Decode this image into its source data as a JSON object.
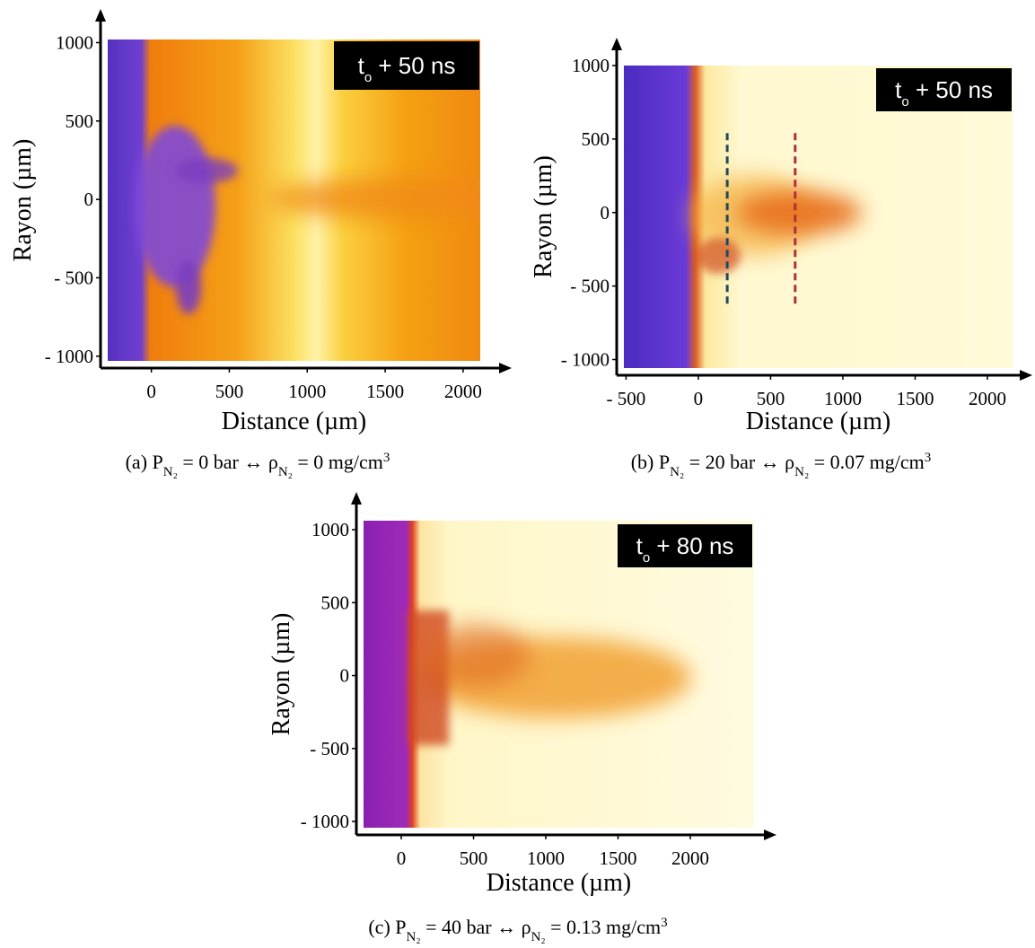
{
  "chart_data": [
    {
      "type": "image",
      "xlabel": "Distance (µm)",
      "ylabel": "Rayon (µm)",
      "annotation": [
        {
          "text": "t"
        },
        {
          "text": "o",
          "shift": "sub"
        },
        {
          "text": " + 50 ns"
        }
      ],
      "xlim": [
        -280,
        2110
      ],
      "ylim": [
        -1030,
        1020
      ],
      "xticks": [
        0,
        500,
        1000,
        1500,
        2000
      ],
      "yticks": [
        1000,
        500,
        0,
        {
          "value": -500,
          "label": "- 500"
        },
        {
          "value": -1000,
          "label": "- 1000"
        }
      ],
      "caption": [
        {
          "text": "(a) P"
        },
        {
          "text": "N₂",
          "shift": "sub"
        },
        {
          "text": " = 0 bar ↔ ρ"
        },
        {
          "text": "N₂",
          "shift": "sub"
        },
        {
          "text": " = 0 mg/cm"
        },
        {
          "text": "3",
          "shift": "super"
        }
      ]
    },
    {
      "type": "image",
      "xlabel": "Distance (µm)",
      "ylabel": "Rayon (µm)",
      "annotation": [
        {
          "text": "t"
        },
        {
          "text": "o",
          "shift": "sub"
        },
        {
          "text": " + 50 ns"
        }
      ],
      "xlim": [
        -515,
        2174
      ],
      "ylim": [
        -1058,
        1000
      ],
      "xticks": [
        {
          "value": -500,
          "label": "- 500"
        },
        0,
        500,
        1000,
        1500,
        2000
      ],
      "yticks": [
        1000,
        500,
        0,
        {
          "value": -500,
          "label": "- 500"
        },
        {
          "value": -1000,
          "label": "- 1000"
        }
      ],
      "markers": [
        {
          "x": 200,
          "y": [
            -620,
            560
          ],
          "color": "#1f4a5c"
        },
        {
          "x": 670,
          "y": [
            -620,
            560
          ],
          "color": "#b0303a"
        }
      ],
      "caption": [
        {
          "text": "(b) P"
        },
        {
          "text": "N₂",
          "shift": "sub"
        },
        {
          "text": " = 20 bar ↔ ρ"
        },
        {
          "text": "N₂",
          "shift": "sub"
        },
        {
          "text": " = 0.07 mg/cm"
        },
        {
          "text": "3",
          "shift": "super"
        }
      ]
    },
    {
      "type": "image",
      "xlabel": "Distance (µm)",
      "ylabel": "Rayon (µm)",
      "annotation": [
        {
          "text": "t"
        },
        {
          "text": "o",
          "shift": "sub"
        },
        {
          "text": " + 80 ns"
        }
      ],
      "xlim": [
        -261,
        2441
      ],
      "ylim": [
        -1043,
        1062
      ],
      "xticks": [
        0,
        500,
        1000,
        1500,
        2000
      ],
      "yticks": [
        1000,
        500,
        0,
        {
          "value": -500,
          "label": "- 500"
        },
        {
          "value": -1000,
          "label": "- 1000"
        }
      ],
      "caption": [
        {
          "text": "(c) P"
        },
        {
          "text": "N₂",
          "shift": "sub"
        },
        {
          "text": " = 40 bar ↔ ρ"
        },
        {
          "text": "N₂",
          "shift": "sub"
        },
        {
          "text": " = 0.13 mg/cm"
        },
        {
          "text": "3",
          "shift": "super"
        }
      ]
    }
  ]
}
